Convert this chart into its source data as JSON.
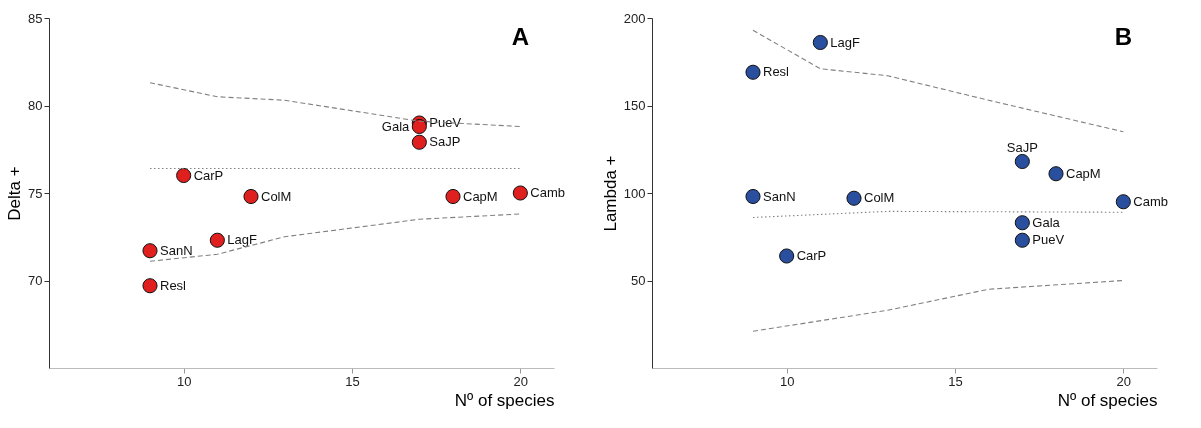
{
  "chart_data": [
    {
      "type": "scatter",
      "annotations": [
        "A"
      ],
      "xlabel": "Nº of species",
      "ylabel": "Delta +",
      "xlim": [
        6,
        21
      ],
      "ylim": [
        65,
        85
      ],
      "xticks": [
        10,
        15,
        20
      ],
      "yticks": [
        70,
        75,
        80,
        85
      ],
      "grid": false,
      "marker": "circle",
      "series": [
        {
          "color": "#e0201f",
          "x": [
            9,
            9,
            10,
            11,
            12,
            17,
            17,
            17,
            18,
            20
          ],
          "values": [
            71.7,
            69.7,
            76.0,
            72.3,
            74.8,
            79.0,
            78.8,
            77.9,
            74.8,
            75.0
          ],
          "value_labels": [
            "SanN",
            "Resl",
            "CarP",
            "LagF",
            "ColM",
            "PueV",
            "Gala",
            "SaJP",
            "CapM",
            "Camb"
          ]
        },
        {
          "type": "line",
          "marker": "none",
          "color": "#808080",
          "line_style": "dashed",
          "x": [
            9,
            11,
            13,
            17,
            20
          ],
          "values": [
            81.3,
            80.5,
            80.3,
            79.1,
            78.8
          ]
        },
        {
          "type": "line",
          "marker": "none",
          "color": "#808080",
          "line_style": "dotted",
          "x": [
            9,
            20
          ],
          "values": [
            76.4,
            76.4
          ]
        },
        {
          "type": "line",
          "marker": "none",
          "color": "#808080",
          "line_style": "dashed",
          "x": [
            9,
            11,
            13,
            17,
            20
          ],
          "values": [
            71.1,
            71.5,
            72.5,
            73.5,
            73.8
          ]
        }
      ]
    },
    {
      "type": "scatter",
      "annotations": [
        "B"
      ],
      "xlabel": "Nº of species",
      "ylabel": "Lambda +",
      "xlim": [
        6,
        21
      ],
      "ylim": [
        0,
        200
      ],
      "xticks": [
        10,
        15,
        20
      ],
      "yticks": [
        50,
        100,
        150,
        200
      ],
      "grid": false,
      "marker": "circle",
      "series": [
        {
          "color": "#2a4f9e",
          "x": [
            9,
            11,
            9,
            12,
            10,
            17,
            18,
            20,
            17,
            17
          ],
          "values": [
            169,
            186,
            98,
            97,
            64,
            118,
            111,
            95,
            83,
            73
          ],
          "value_labels": [
            "Resl",
            "LagF",
            "SanN",
            "ColM",
            "CarP",
            "SaJP",
            "CapM",
            "Camb",
            "Gala",
            "PueV"
          ]
        },
        {
          "type": "line",
          "marker": "none",
          "color": "#808080",
          "line_style": "dashed",
          "x": [
            9,
            11,
            13,
            16,
            20
          ],
          "values": [
            193,
            171,
            167,
            153,
            135
          ]
        },
        {
          "type": "line",
          "marker": "none",
          "color": "#808080",
          "line_style": "dotted",
          "x": [
            9,
            13,
            20
          ],
          "values": [
            86,
            89.5,
            89
          ]
        },
        {
          "type": "line",
          "marker": "none",
          "color": "#808080",
          "line_style": "dashed",
          "x": [
            9,
            13,
            16,
            20
          ],
          "values": [
            21,
            33,
            45,
            50
          ]
        }
      ]
    }
  ]
}
